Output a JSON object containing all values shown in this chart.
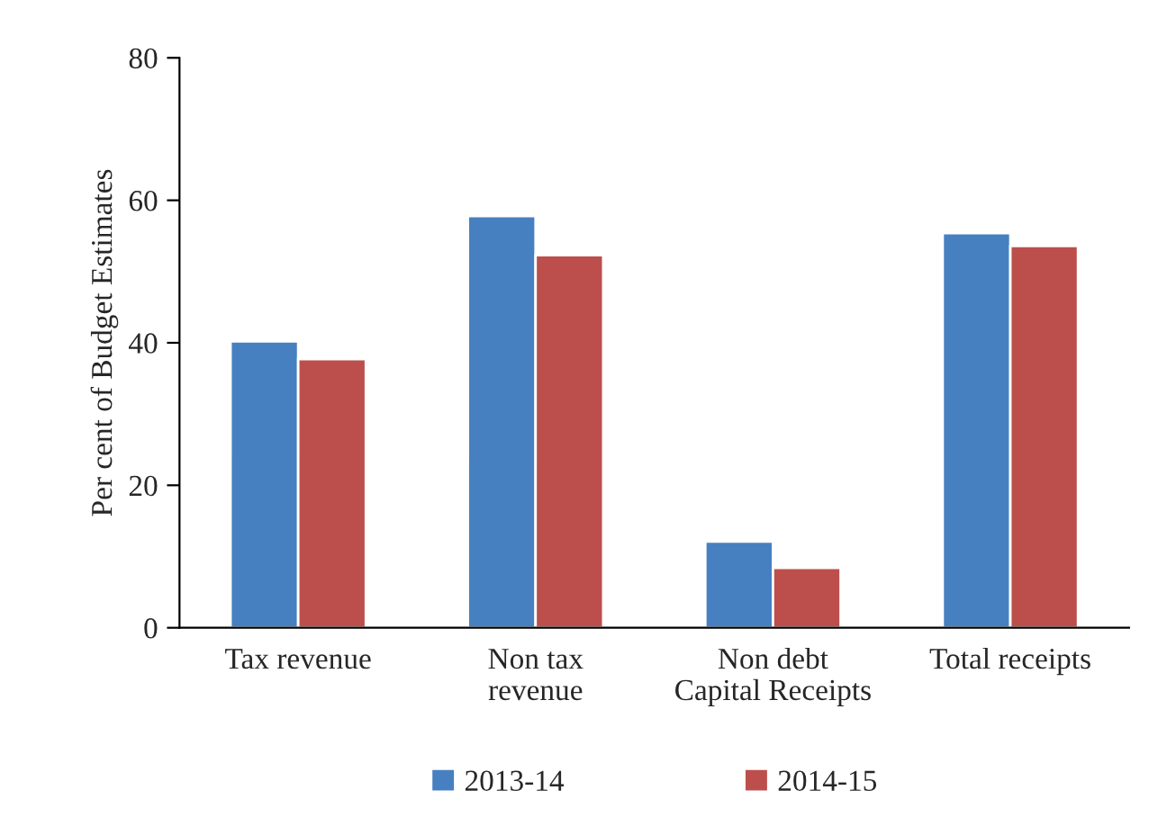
{
  "chart_data": {
    "type": "bar",
    "ylabel": "Per cent of Budget Estimates",
    "categories": [
      "Tax revenue",
      "Non tax\nrevenue",
      "Non debt\nCapital Receipts",
      "Total receipts"
    ],
    "series": [
      {
        "name": "2013-14",
        "color": "#4680c0",
        "values": [
          40.2,
          57.8,
          12.1,
          55.4
        ]
      },
      {
        "name": "2014-15",
        "color": "#bc4f4c",
        "values": [
          37.7,
          52.3,
          8.4,
          53.6
        ]
      }
    ],
    "ylim": [
      0,
      80
    ],
    "yticks": [
      0,
      20,
      40,
      60,
      80
    ],
    "grid": false,
    "legend": "bottom"
  }
}
